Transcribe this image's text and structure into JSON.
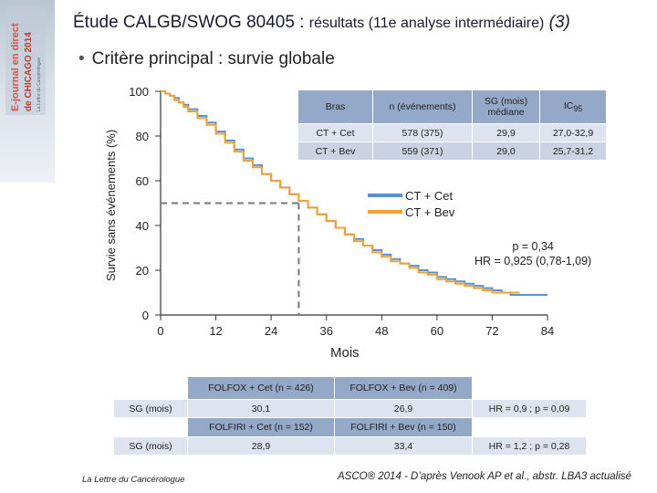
{
  "sidebar": {
    "brand_lines": [
      "E-journal",
      "en direct",
      "de CHICAGO 2014"
    ]
  },
  "header": {
    "title_main": "Étude CALGB/SWOG 80405 : ",
    "title_sub": "résultats (11e analyse intermédiaire)",
    "title_num": "(3)"
  },
  "bullet": {
    "text": "Critère principal : survie globale"
  },
  "chart_data": {
    "type": "line",
    "title": "",
    "xlabel": "Mois",
    "ylabel": "Survie sans événements (%)",
    "xlim": [
      0,
      84
    ],
    "ylim": [
      0,
      100
    ],
    "xticks": [
      "0",
      "12",
      "24",
      "36",
      "48",
      "60",
      "72",
      "84"
    ],
    "yticks": [
      "0",
      "20",
      "40",
      "60",
      "80",
      "100"
    ],
    "median_y": 50,
    "series": [
      {
        "name": "CT + Cet",
        "color": "#5b8fd3",
        "points": [
          [
            0,
            100
          ],
          [
            1,
            99
          ],
          [
            2,
            98
          ],
          [
            3,
            97
          ],
          [
            4,
            95
          ],
          [
            5,
            94
          ],
          [
            6,
            92
          ],
          [
            8,
            89
          ],
          [
            10,
            86
          ],
          [
            12,
            82
          ],
          [
            14,
            78
          ],
          [
            16,
            74
          ],
          [
            18,
            70
          ],
          [
            20,
            67
          ],
          [
            22,
            63
          ],
          [
            24,
            60
          ],
          [
            26,
            57
          ],
          [
            28,
            54
          ],
          [
            30,
            51
          ],
          [
            32,
            48
          ],
          [
            34,
            45
          ],
          [
            36,
            42
          ],
          [
            38,
            39
          ],
          [
            40,
            36
          ],
          [
            42,
            34
          ],
          [
            44,
            31
          ],
          [
            46,
            29
          ],
          [
            48,
            27
          ],
          [
            50,
            25
          ],
          [
            52,
            23
          ],
          [
            54,
            22
          ],
          [
            56,
            20
          ],
          [
            58,
            19
          ],
          [
            60,
            17
          ],
          [
            62,
            16
          ],
          [
            64,
            15
          ],
          [
            66,
            14
          ],
          [
            68,
            13
          ],
          [
            70,
            12
          ],
          [
            72,
            11
          ],
          [
            74,
            10
          ],
          [
            76,
            9
          ],
          [
            80,
            9
          ],
          [
            84,
            9
          ]
        ]
      },
      {
        "name": "CT + Bev",
        "color": "#f0a233",
        "points": [
          [
            0,
            100
          ],
          [
            1,
            99
          ],
          [
            2,
            98
          ],
          [
            3,
            96
          ],
          [
            4,
            95
          ],
          [
            5,
            93
          ],
          [
            6,
            91
          ],
          [
            8,
            88
          ],
          [
            10,
            85
          ],
          [
            12,
            81
          ],
          [
            14,
            77
          ],
          [
            16,
            73
          ],
          [
            18,
            69
          ],
          [
            20,
            66
          ],
          [
            22,
            63
          ],
          [
            24,
            60
          ],
          [
            26,
            57
          ],
          [
            28,
            54
          ],
          [
            30,
            51
          ],
          [
            32,
            48
          ],
          [
            34,
            45
          ],
          [
            36,
            42
          ],
          [
            38,
            39
          ],
          [
            40,
            36
          ],
          [
            42,
            33
          ],
          [
            44,
            31
          ],
          [
            46,
            28
          ],
          [
            48,
            26
          ],
          [
            50,
            24
          ],
          [
            52,
            23
          ],
          [
            54,
            21
          ],
          [
            56,
            19
          ],
          [
            58,
            18
          ],
          [
            60,
            16
          ],
          [
            62,
            15
          ],
          [
            64,
            14
          ],
          [
            66,
            13
          ],
          [
            68,
            12
          ],
          [
            70,
            11
          ],
          [
            72,
            10
          ],
          [
            74,
            10
          ],
          [
            76,
            10
          ],
          [
            78,
            10
          ]
        ]
      }
    ],
    "annotations": [
      "p = 0,34",
      "HR = 0,925 (0,78-1,09)"
    ]
  },
  "table": {
    "headers": [
      "Bras",
      "n (événements)",
      "SG (mois) médiane",
      "IC95"
    ],
    "rows": [
      [
        "CT + Cet",
        "578 (375)",
        "29,9",
        "27,0-32,9"
      ],
      [
        "CT + Bev",
        "559 (371)",
        "29,0",
        "25,7-31,2"
      ]
    ]
  },
  "bottom_table": {
    "row1_headers": [
      "FOLFOX + Cet (n = 426)",
      "FOLFOX + Bev (n = 409)"
    ],
    "row1_label": "SG (mois)",
    "row1_values": [
      "30,1",
      "26,9"
    ],
    "row1_stat": "HR = 0,9 ; p = 0,09",
    "row2_headers": [
      "FOLFIRI + Cet (n = 152)",
      "FOLFIRI + Bev (n = 150)"
    ],
    "row2_label": "SG (mois)",
    "row2_values": [
      "28,9",
      "33,4"
    ],
    "row2_stat": "HR = 1,2 ; p = 0,28"
  },
  "footer": {
    "left": "La Lettre du Cancérologue",
    "right": "ASCO® 2014 - D’après Venook AP et al., abstr. LBA3 actualisé"
  }
}
